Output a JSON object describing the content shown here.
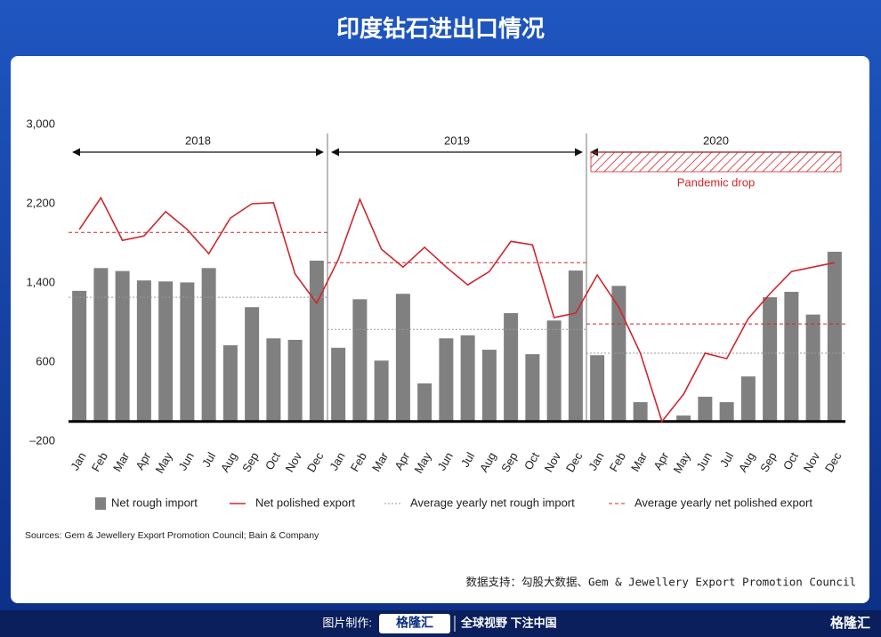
{
  "header": {
    "title": "印度钻石进出口情况"
  },
  "chart_data": {
    "type": "bar",
    "categories": [
      "Jan",
      "Feb",
      "Mar",
      "Apr",
      "May",
      "Jun",
      "Jul",
      "Aug",
      "Sep",
      "Oct",
      "Nov",
      "Dec",
      "Jan",
      "Feb",
      "Mar",
      "Apr",
      "May",
      "Jun",
      "Jul",
      "Aug",
      "Sep",
      "Oct",
      "Nov",
      "Dec",
      "Jan",
      "Feb",
      "Mar",
      "Apr",
      "May",
      "Jun",
      "Jul",
      "Aug",
      "Sep",
      "Oct",
      "Nov",
      "Dec"
    ],
    "periods": [
      "2018",
      "2019",
      "2020"
    ],
    "series": [
      {
        "name": "Net rough import",
        "type": "bar",
        "color": "#808080",
        "values": [
          1320,
          1550,
          1520,
          1425,
          1415,
          1405,
          1550,
          770,
          1155,
          840,
          825,
          1625,
          745,
          1235,
          615,
          1290,
          385,
          840,
          870,
          725,
          1095,
          680,
          1020,
          1525,
          670,
          1370,
          195,
          0,
          60,
          250,
          195,
          455,
          1255,
          1310,
          1080,
          1715
        ]
      },
      {
        "name": "Net polished export",
        "type": "line",
        "color": "#d0262d",
        "values": [
          1940,
          2260,
          1830,
          1875,
          2120,
          1940,
          1695,
          2055,
          2200,
          2210,
          1490,
          1195,
          1635,
          2245,
          1740,
          1560,
          1760,
          1560,
          1380,
          1515,
          1820,
          1785,
          1050,
          1095,
          1480,
          1155,
          690,
          0,
          275,
          690,
          635,
          1040,
          1290,
          1515,
          1560,
          1605
        ]
      }
    ],
    "reference_lines": [
      {
        "name": "Average yearly net rough import",
        "color": "#9a9a9a",
        "style": "dotted",
        "values": [
          1255,
          930,
          690
        ]
      },
      {
        "name": "Average yearly net polished export",
        "color": "#d0262d",
        "style": "dashed",
        "values": [
          1910,
          1605,
          985
        ]
      }
    ],
    "annotation": "Pandemic drop",
    "ylim": [
      -200,
      3000
    ],
    "yticks": [
      {
        "value": 3000,
        "label": "3,000"
      },
      {
        "value": 2200,
        "label": "2,200"
      },
      {
        "value": 1400,
        "label": "1,400"
      },
      600,
      {
        "value": -200,
        "label": "–200"
      }
    ],
    "source": "Sources: Gem & Jewellery Export Promotion Council; Bain & Company"
  },
  "footer": {
    "credit": "数据支持：勾股大数据、Gem & Jewellery Export Promotion Council",
    "made_by": "图片制作:",
    "brand": "格隆汇",
    "slogan": "全球视野 下注中国",
    "corner_brand": "格隆汇"
  }
}
